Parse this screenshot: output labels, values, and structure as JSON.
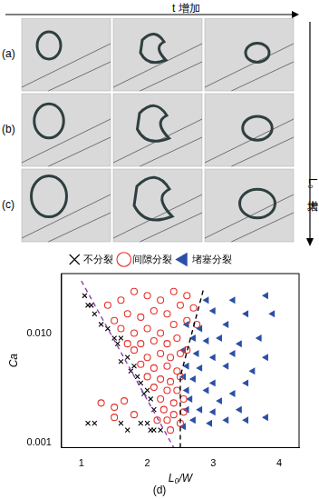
{
  "figure": {
    "top_arrow": "t 增加",
    "side_arrow": "L₀ 增大",
    "panels": [
      "(a)",
      "(b)",
      "(c)"
    ],
    "chart_panel": "(d)"
  },
  "chart_data": {
    "type": "scatter",
    "x_label": "L₀/W",
    "y_label": "Ca",
    "log": "y",
    "grid": false,
    "legend": "top",
    "xlim": [
      0.7,
      4.3
    ],
    "xticks": [
      1,
      2,
      3,
      4
    ],
    "ylim": [
      0.0009,
      0.035
    ],
    "yticks": [
      {
        "value": 0.001,
        "label": "0.001"
      },
      {
        "value": 0.01,
        "label": "0.010"
      }
    ],
    "series": [
      {
        "name": "不分裂",
        "color": "#000000",
        "marker": "x",
        "x": [
          1.05,
          1.1,
          1.15,
          1.2,
          1.3,
          1.4,
          1.5,
          1.6,
          1.55,
          1.7,
          1.6,
          1.8,
          1.75,
          1.85,
          1.9,
          2.0,
          1.95,
          2.05,
          2.1,
          2.0,
          2.05,
          1.1,
          1.2,
          1.6,
          1.7,
          1.9,
          2.1,
          2.2
        ],
        "values": [
          0.022,
          0.018,
          0.018,
          0.015,
          0.012,
          0.011,
          0.009,
          0.009,
          0.008,
          0.006,
          0.0055,
          0.005,
          0.0045,
          0.004,
          0.0035,
          0.003,
          0.0028,
          0.0025,
          0.002,
          0.0015,
          0.0013,
          0.0015,
          0.0015,
          0.0015,
          0.0013,
          0.0015,
          0.0013,
          0.0013
        ]
      },
      {
        "name": "间隙分裂",
        "color": "#e8322d",
        "marker": "circle",
        "x": [
          1.4,
          1.6,
          1.8,
          2.0,
          2.2,
          2.4,
          2.6,
          1.5,
          1.7,
          1.9,
          2.1,
          2.3,
          2.5,
          2.7,
          1.6,
          1.8,
          2.0,
          2.2,
          2.4,
          2.6,
          2.75,
          1.7,
          1.9,
          2.1,
          2.3,
          2.45,
          1.8,
          2.0,
          2.2,
          2.35,
          2.5,
          2.6,
          1.9,
          2.1,
          2.3,
          2.45,
          2.0,
          2.2,
          2.35,
          2.5,
          2.1,
          2.3,
          2.45,
          2.2,
          2.4,
          2.55,
          2.25,
          2.4,
          2.55,
          2.3,
          2.5,
          1.3,
          1.5,
          1.65,
          1.5,
          1.8,
          2.15,
          2.35
        ],
        "values": [
          0.018,
          0.02,
          0.024,
          0.022,
          0.02,
          0.024,
          0.022,
          0.013,
          0.015,
          0.014,
          0.016,
          0.015,
          0.018,
          0.017,
          0.011,
          0.01,
          0.011,
          0.01,
          0.012,
          0.013,
          0.012,
          0.008,
          0.008,
          0.0085,
          0.008,
          0.009,
          0.007,
          0.006,
          0.0065,
          0.006,
          0.0065,
          0.007,
          0.0052,
          0.0048,
          0.005,
          0.0045,
          0.004,
          0.0038,
          0.0036,
          0.004,
          0.0032,
          0.003,
          0.003,
          0.0025,
          0.0023,
          0.0025,
          0.002,
          0.0018,
          0.0019,
          0.0016,
          0.0015,
          0.0023,
          0.0021,
          0.0024,
          0.0017,
          0.0018,
          0.0016,
          0.0013
        ]
      },
      {
        "name": "堵塞分裂",
        "color": "#2a4fa8",
        "marker": "triangle-left",
        "x": [
          2.9,
          3.3,
          3.8,
          3.0,
          3.5,
          3.9,
          2.6,
          2.8,
          3.2,
          2.7,
          2.9,
          3.1,
          3.4,
          3.7,
          2.55,
          2.75,
          3.0,
          3.3,
          3.8,
          2.6,
          2.8,
          3.2,
          3.6,
          2.55,
          2.7,
          3.0,
          3.5,
          2.6,
          2.9,
          3.3,
          2.65,
          3.1,
          2.6,
          2.8,
          3.0,
          3.4,
          2.7,
          2.95,
          3.2,
          3.5,
          3.8,
          2.55
        ],
        "values": [
          0.02,
          0.02,
          0.022,
          0.016,
          0.015,
          0.015,
          0.012,
          0.011,
          0.012,
          0.009,
          0.0085,
          0.009,
          0.008,
          0.009,
          0.007,
          0.0065,
          0.006,
          0.0065,
          0.006,
          0.005,
          0.0048,
          0.005,
          0.0045,
          0.004,
          0.0038,
          0.0035,
          0.0035,
          0.003,
          0.003,
          0.0028,
          0.0025,
          0.0024,
          0.002,
          0.002,
          0.0019,
          0.002,
          0.0016,
          0.0015,
          0.0016,
          0.0016,
          0.0017,
          0.0014
        ]
      },
      {
        "type": "line",
        "color": "#8a3fb0",
        "line_style": "dashed",
        "x": [
          1.0,
          2.4
        ],
        "values": [
          0.03,
          0.0009
        ]
      },
      {
        "type": "line",
        "color": "#000000",
        "line_style": "dashed",
        "x": [
          2.5,
          2.5,
          2.85
        ],
        "values": [
          0.0009,
          0.004,
          0.025
        ]
      }
    ]
  }
}
